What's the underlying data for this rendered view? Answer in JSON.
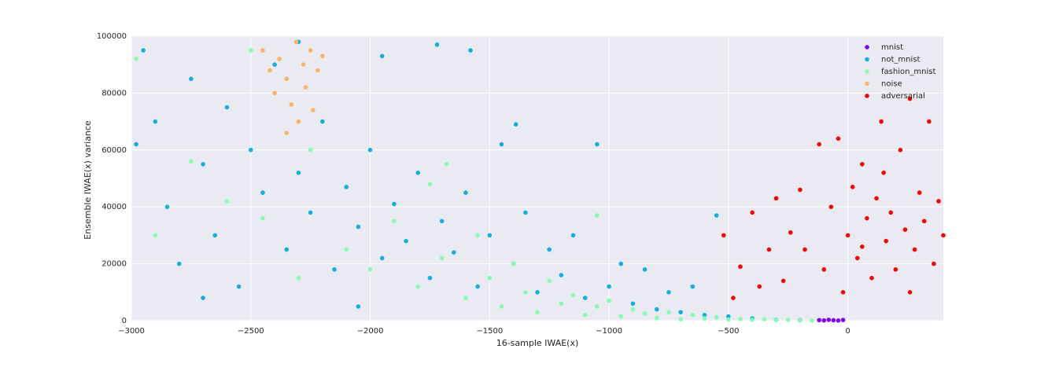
{
  "chart_data": {
    "type": "scatter",
    "xlabel": "16-sample IWAE(x)",
    "ylabel": "Ensemble IWAE(x) variance",
    "xlim": [
      -3000,
      400
    ],
    "ylim": [
      0,
      100000
    ],
    "xticks": [
      {
        "value": -3000,
        "label": "−3000"
      },
      {
        "value": -2500,
        "label": "−2500"
      },
      {
        "value": -2000,
        "label": "−2000"
      },
      {
        "value": -1500,
        "label": "−1500"
      },
      {
        "value": -1000,
        "label": "−1000"
      },
      {
        "value": -500,
        "label": "−500"
      },
      0
    ],
    "yticks": [
      0,
      20000,
      40000,
      60000,
      80000,
      100000
    ],
    "grid": true,
    "legend": "upper right",
    "series": [
      {
        "name": "mnist",
        "color": "#8000ff",
        "x": [
          -120,
          -100,
          -80,
          -60,
          -40,
          -20
        ],
        "y": [
          200,
          100,
          300,
          150,
          50,
          250
        ]
      },
      {
        "name": "not_mnist",
        "color": "#0bb2e2",
        "x": [
          -2950,
          -2900,
          -2850,
          -2800,
          -2750,
          -2700,
          -2650,
          -2600,
          -2550,
          -2500,
          -2450,
          -2400,
          -2350,
          -2300,
          -2250,
          -2200,
          -2150,
          -2100,
          -2050,
          -2000,
          -1950,
          -1900,
          -1850,
          -1800,
          -1750,
          -1700,
          -1650,
          -1600,
          -1550,
          -1500,
          -1450,
          -1400,
          -1350,
          -1300,
          -1250,
          -1200,
          -1150,
          -1100,
          -1050,
          -1000,
          -950,
          -900,
          -850,
          -800,
          -750,
          -700,
          -650,
          -600,
          -550,
          -500,
          -400,
          -300,
          -200,
          -2300,
          -1720,
          -1580,
          -1390,
          -2980,
          -2700,
          -2050,
          -1950
        ],
        "y": [
          95000,
          70000,
          40000,
          20000,
          85000,
          55000,
          30000,
          75000,
          12000,
          60000,
          45000,
          90000,
          25000,
          52000,
          38000,
          70000,
          18000,
          47000,
          33000,
          60000,
          22000,
          41000,
          28000,
          52000,
          15000,
          35000,
          24000,
          45000,
          12000,
          30000,
          62000,
          20000,
          38000,
          10000,
          25000,
          16000,
          30000,
          8000,
          62000,
          12000,
          20000,
          6000,
          18000,
          4000,
          10000,
          3000,
          12000,
          2000,
          37000,
          1500,
          800,
          300,
          200,
          98000,
          97000,
          95000,
          69000,
          62000,
          8000,
          5000,
          93000
        ]
      },
      {
        "name": "fashion_mnist",
        "color": "#80ffb4",
        "x": [
          -2980,
          -2900,
          -2750,
          -2600,
          -2450,
          -2300,
          -2250,
          -2100,
          -2000,
          -1900,
          -1800,
          -1750,
          -1700,
          -1600,
          -1550,
          -1500,
          -1450,
          -1400,
          -1350,
          -1300,
          -1250,
          -1200,
          -1150,
          -1100,
          -1050,
          -1000,
          -950,
          -900,
          -850,
          -800,
          -750,
          -700,
          -650,
          -600,
          -550,
          -500,
          -450,
          -400,
          -350,
          -300,
          -250,
          -200,
          -150,
          -1050,
          -1680,
          -2500
        ],
        "y": [
          92000,
          30000,
          56000,
          42000,
          36000,
          15000,
          60000,
          25000,
          18000,
          35000,
          12000,
          48000,
          22000,
          8000,
          30000,
          15000,
          5000,
          20000,
          10000,
          3000,
          14000,
          6000,
          9000,
          2000,
          5000,
          7000,
          1500,
          4000,
          2500,
          1000,
          3000,
          500,
          2000,
          800,
          1200,
          400,
          600,
          300,
          500,
          200,
          300,
          100,
          50,
          37000,
          55000,
          95000
        ]
      },
      {
        "name": "noise",
        "color": "#ffb360",
        "x": [
          -2450,
          -2420,
          -2400,
          -2380,
          -2350,
          -2330,
          -2310,
          -2300,
          -2280,
          -2270,
          -2250,
          -2240,
          -2220,
          -2350,
          -2200
        ],
        "y": [
          95000,
          88000,
          80000,
          92000,
          85000,
          76000,
          98000,
          70000,
          90000,
          82000,
          95000,
          74000,
          88000,
          66000,
          93000
        ]
      },
      {
        "name": "adversarial",
        "color": "#ff0000",
        "x": [
          -520,
          -480,
          -450,
          -400,
          -370,
          -330,
          -300,
          -270,
          -240,
          -200,
          -180,
          -120,
          -100,
          -70,
          -40,
          -20,
          0,
          20,
          40,
          60,
          80,
          100,
          120,
          140,
          160,
          180,
          200,
          220,
          240,
          260,
          280,
          300,
          320,
          340,
          360,
          380,
          400,
          260,
          150,
          60
        ],
        "y": [
          30000,
          8000,
          19000,
          38000,
          12000,
          25000,
          43000,
          14000,
          31000,
          46000,
          25000,
          62000,
          18000,
          40000,
          64000,
          10000,
          30000,
          47000,
          22000,
          55000,
          36000,
          15000,
          43000,
          70000,
          28000,
          38000,
          18000,
          60000,
          32000,
          78000,
          25000,
          45000,
          35000,
          70000,
          20000,
          42000,
          30000,
          10000,
          52000,
          26000
        ]
      }
    ]
  }
}
